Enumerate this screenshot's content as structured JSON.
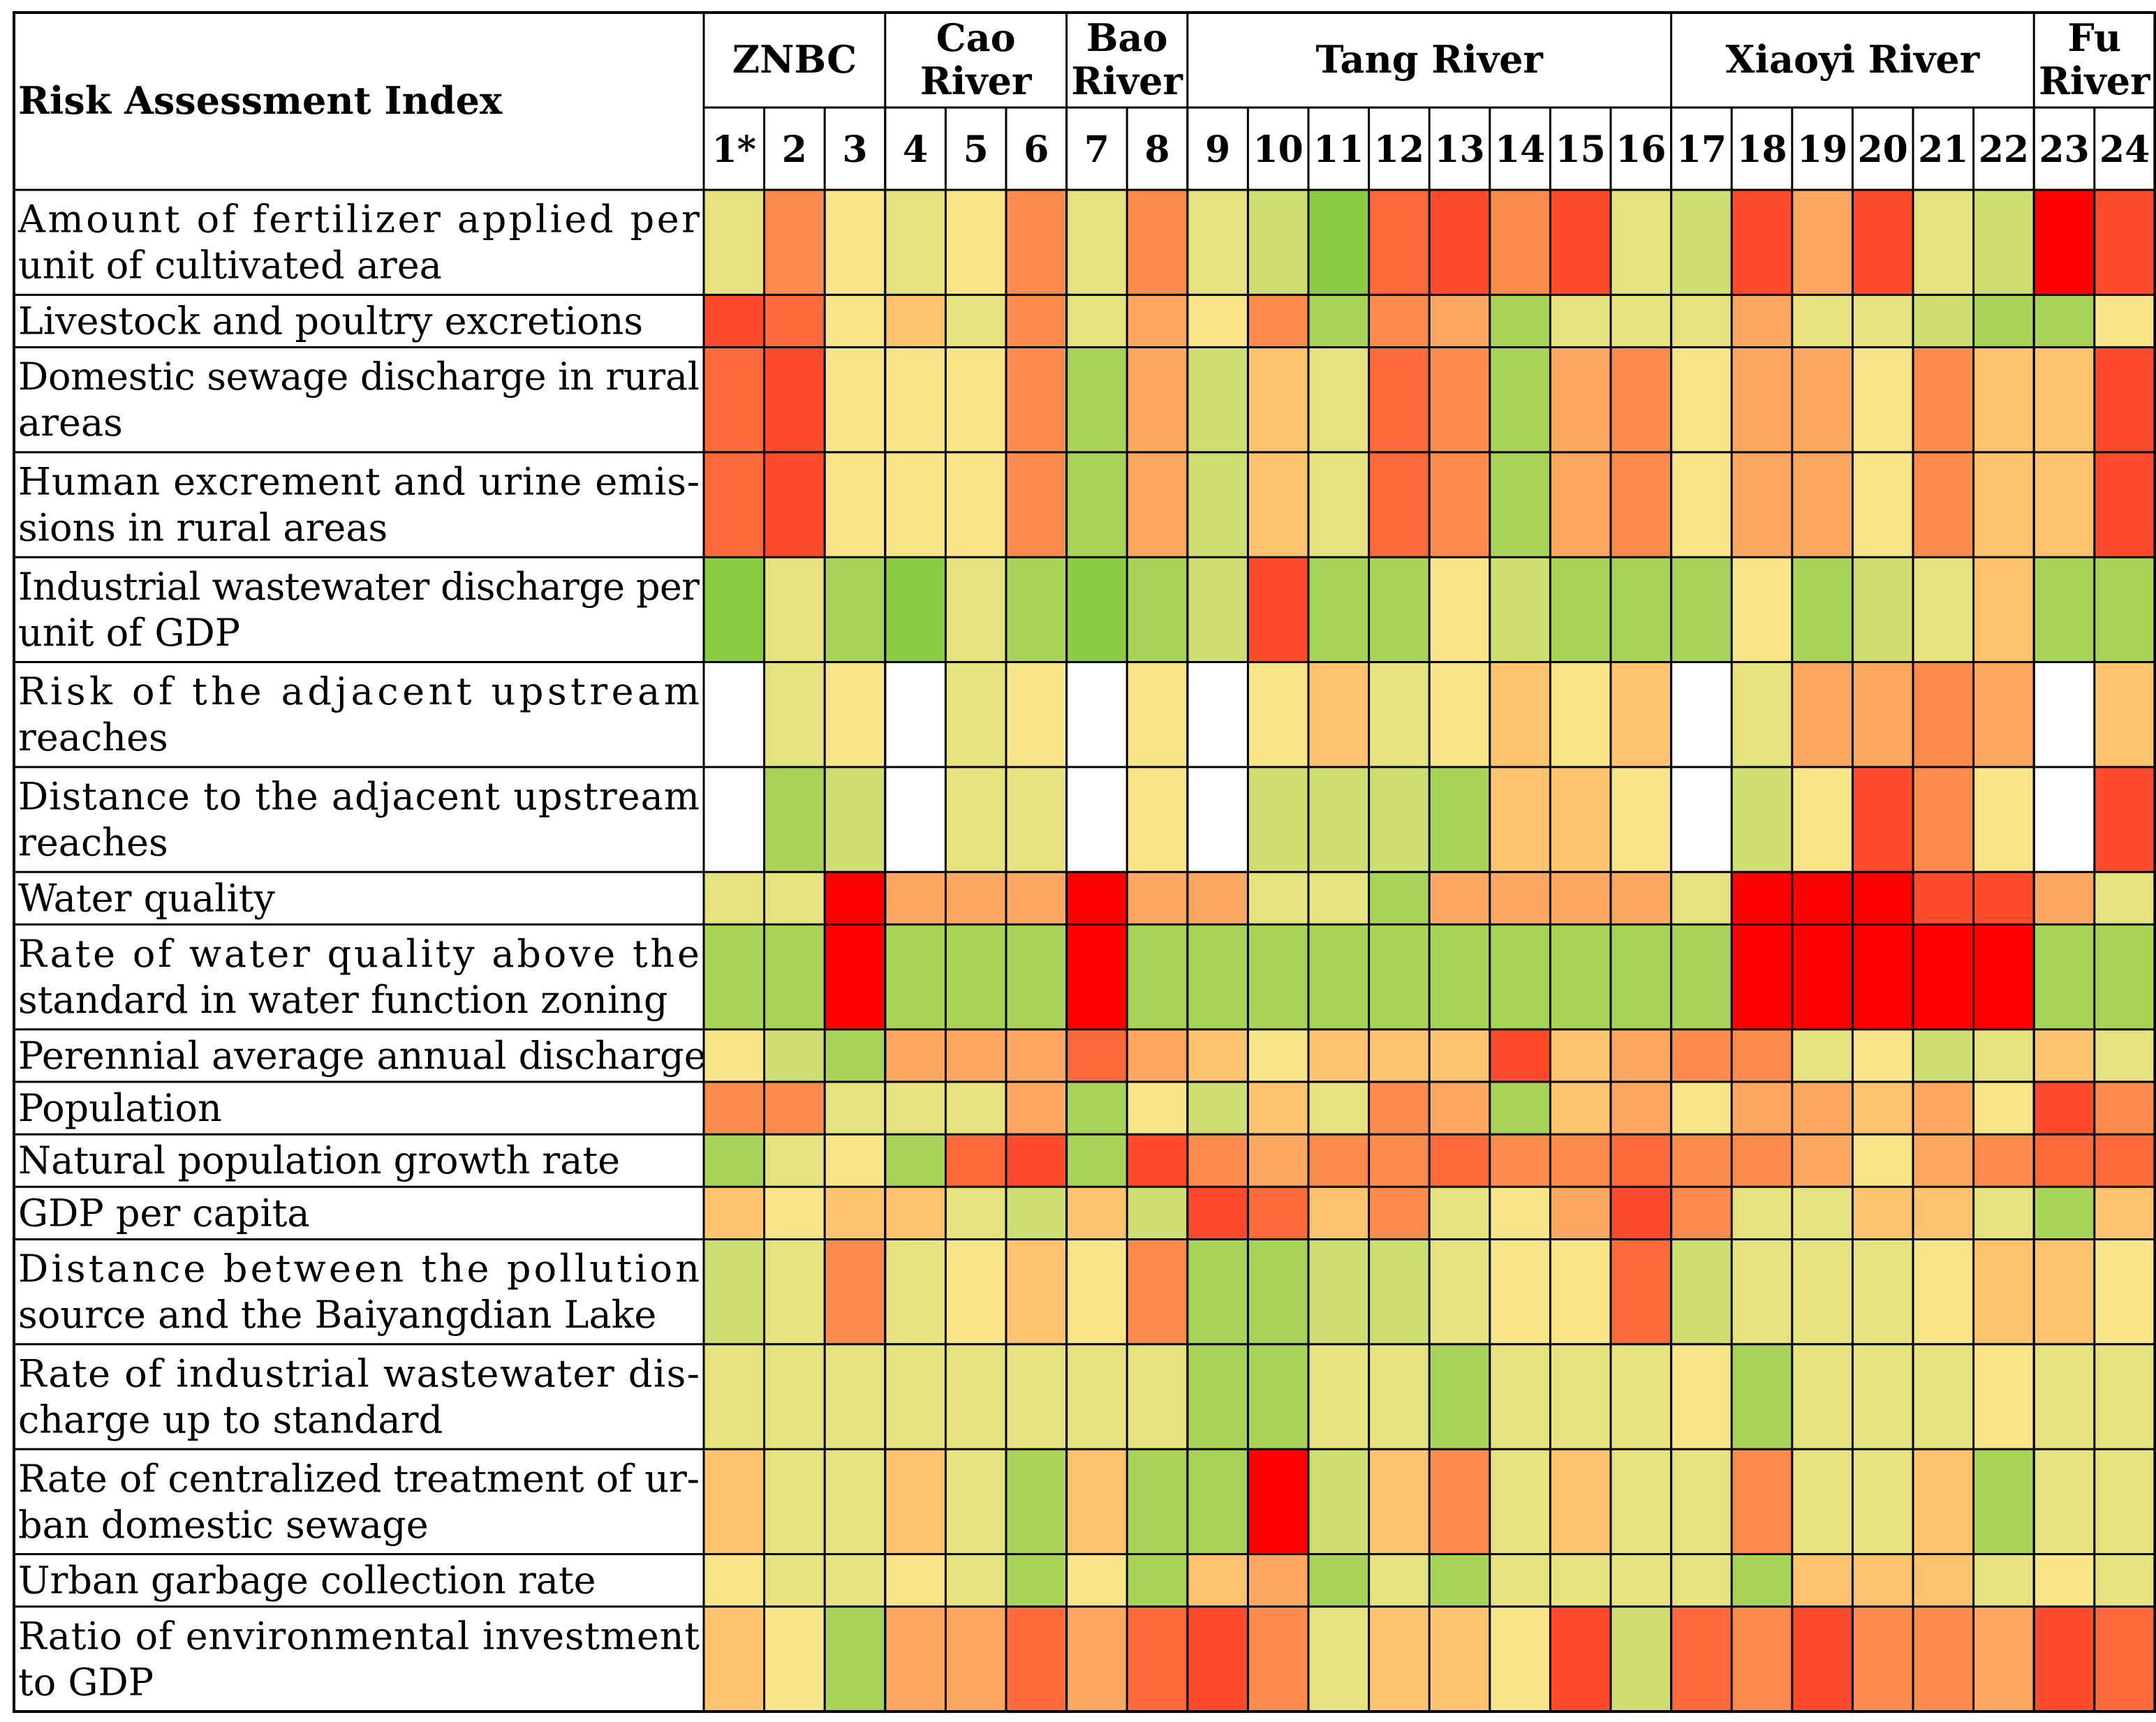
{
  "chart_data": {
    "type": "heatmap",
    "title": "",
    "row_header": "Risk Assessment Index",
    "groups": [
      {
        "name": "ZNBC",
        "lines": [
          "ZNBC"
        ],
        "columns": [
          "1*",
          "2",
          "3"
        ]
      },
      {
        "name": "Cao River",
        "lines": [
          "Cao",
          "River"
        ],
        "columns": [
          "4",
          "5",
          "6"
        ]
      },
      {
        "name": "Bao River",
        "lines": [
          "Bao",
          "River"
        ],
        "columns": [
          "7",
          "8"
        ]
      },
      {
        "name": "Tang River",
        "lines": [
          "Tang River"
        ],
        "columns": [
          "9",
          "10",
          "11",
          "12",
          "13",
          "14",
          "15",
          "16"
        ]
      },
      {
        "name": "Xiaoyi River",
        "lines": [
          "Xiaoyi River"
        ],
        "columns": [
          "17",
          "18",
          "19",
          "20",
          "21",
          "22"
        ]
      },
      {
        "name": "Fu River",
        "lines": [
          "Fu",
          "River"
        ],
        "columns": [
          "23",
          "24"
        ]
      }
    ],
    "columns": [
      "1*",
      "2",
      "3",
      "4",
      "5",
      "6",
      "7",
      "8",
      "9",
      "10",
      "11",
      "12",
      "13",
      "14",
      "15",
      "16",
      "17",
      "18",
      "19",
      "20",
      "21",
      "22",
      "23",
      "24"
    ],
    "color_scale": {
      "0": "#ffffff",
      "1": "#8ccc45",
      "2": "#a8d45a",
      "3": "#cfde72",
      "4": "#e6e280",
      "5": "#f8e589",
      "6": "#fec36f",
      "7": "#fda862",
      "8": "#fc8c4d",
      "9": "#fc6a3c",
      "10": "#fc4b2c",
      "11": "#ff0000"
    },
    "level_note": "0 = no value (white); 1 = lowest risk (green) through 11 = highest risk (red)",
    "rows": [
      {
        "label": [
          "Amount of fertilizer applied per",
          "unit of cultivated area"
        ],
        "levels": [
          4,
          8,
          5,
          4,
          5,
          8,
          4,
          8,
          4,
          3,
          1,
          9,
          10,
          8,
          10,
          4,
          3,
          10,
          7,
          10,
          4,
          3,
          11,
          10
        ]
      },
      {
        "label": [
          "Livestock and poultry excretions"
        ],
        "levels": [
          10,
          9,
          5,
          6,
          4,
          8,
          4,
          7,
          5,
          8,
          2,
          8,
          7,
          2,
          4,
          4,
          4,
          7,
          4,
          4,
          3,
          2,
          2,
          5
        ]
      },
      {
        "label": [
          "Domestic sewage discharge in rural",
          "areas"
        ],
        "levels": [
          9,
          10,
          5,
          5,
          5,
          8,
          2,
          7,
          3,
          6,
          4,
          9,
          8,
          2,
          7,
          8,
          5,
          7,
          7,
          5,
          8,
          6,
          6,
          10
        ]
      },
      {
        "label": [
          "Human excrement and urine emis-",
          "sions in rural areas"
        ],
        "levels": [
          9,
          10,
          5,
          5,
          5,
          8,
          2,
          7,
          3,
          6,
          4,
          9,
          8,
          2,
          7,
          8,
          5,
          7,
          7,
          5,
          8,
          6,
          6,
          10
        ]
      },
      {
        "label": [
          "Industrial wastewater discharge per",
          "unit of GDP"
        ],
        "levels": [
          1,
          4,
          2,
          1,
          4,
          2,
          1,
          2,
          3,
          10,
          2,
          2,
          5,
          3,
          2,
          2,
          2,
          5,
          2,
          3,
          4,
          6,
          2,
          2
        ]
      },
      {
        "label": [
          "Risk of the adjacent upstream",
          "reaches"
        ],
        "levels": [
          0,
          4,
          5,
          0,
          4,
          5,
          0,
          5,
          0,
          5,
          6,
          4,
          5,
          6,
          5,
          6,
          0,
          4,
          7,
          7,
          8,
          7,
          0,
          6
        ]
      },
      {
        "label": [
          "Distance to the adjacent upstream",
          "reaches"
        ],
        "levels": [
          0,
          2,
          3,
          0,
          4,
          4,
          0,
          5,
          0,
          3,
          3,
          3,
          2,
          6,
          6,
          5,
          0,
          3,
          5,
          10,
          8,
          5,
          0,
          10
        ]
      },
      {
        "label": [
          "Water quality"
        ],
        "levels": [
          4,
          4,
          11,
          7,
          7,
          7,
          11,
          7,
          7,
          4,
          4,
          2,
          7,
          7,
          7,
          7,
          4,
          11,
          11,
          11,
          10,
          10,
          7,
          4
        ]
      },
      {
        "label": [
          "Rate of water quality above the",
          "standard in water function zoning"
        ],
        "levels": [
          2,
          2,
          11,
          2,
          2,
          2,
          11,
          2,
          2,
          2,
          2,
          2,
          2,
          2,
          2,
          2,
          2,
          11,
          11,
          11,
          11,
          11,
          2,
          2
        ]
      },
      {
        "label": [
          "Perennial average annual discharge"
        ],
        "levels": [
          5,
          3,
          2,
          7,
          7,
          7,
          9,
          7,
          6,
          5,
          6,
          6,
          6,
          10,
          6,
          7,
          8,
          8,
          4,
          5,
          3,
          4,
          6,
          4
        ]
      },
      {
        "label": [
          "Population"
        ],
        "levels": [
          8,
          8,
          4,
          4,
          4,
          7,
          2,
          5,
          3,
          6,
          4,
          8,
          7,
          2,
          6,
          7,
          5,
          7,
          7,
          6,
          7,
          5,
          10,
          8
        ]
      },
      {
        "label": [
          "Natural population growth rate"
        ],
        "levels": [
          2,
          4,
          5,
          2,
          9,
          10,
          2,
          10,
          8,
          7,
          8,
          8,
          9,
          8,
          8,
          9,
          8,
          8,
          7,
          5,
          7,
          8,
          9,
          9
        ]
      },
      {
        "label": [
          "GDP per capita"
        ],
        "levels": [
          6,
          5,
          6,
          6,
          4,
          3,
          6,
          3,
          10,
          9,
          6,
          8,
          4,
          5,
          7,
          10,
          8,
          4,
          4,
          6,
          6,
          4,
          2,
          6
        ]
      },
      {
        "label": [
          "Distance between the pollution",
          "source and the Baiyangdian Lake"
        ],
        "levels": [
          3,
          4,
          8,
          4,
          5,
          6,
          5,
          8,
          2,
          2,
          3,
          3,
          4,
          5,
          5,
          9,
          3,
          4,
          4,
          4,
          5,
          6,
          6,
          5
        ]
      },
      {
        "label": [
          "Rate of industrial wastewater dis-",
          "charge up to standard"
        ],
        "levels": [
          4,
          4,
          4,
          4,
          4,
          4,
          4,
          4,
          2,
          2,
          4,
          4,
          2,
          4,
          4,
          4,
          5,
          2,
          4,
          4,
          4,
          5,
          4,
          4
        ]
      },
      {
        "label": [
          "Rate of centralized treatment of ur-",
          "ban domestic sewage"
        ],
        "levels": [
          6,
          4,
          4,
          6,
          4,
          2,
          6,
          2,
          2,
          11,
          3,
          6,
          8,
          4,
          6,
          4,
          4,
          8,
          4,
          4,
          6,
          2,
          4,
          4
        ]
      },
      {
        "label": [
          "Urban garbage collection rate"
        ],
        "levels": [
          5,
          4,
          4,
          5,
          4,
          2,
          5,
          2,
          6,
          7,
          2,
          4,
          2,
          4,
          4,
          4,
          4,
          2,
          6,
          6,
          6,
          4,
          5,
          4
        ]
      },
      {
        "label": [
          "Ratio of environmental investment",
          "to GDP"
        ],
        "levels": [
          6,
          5,
          2,
          7,
          7,
          9,
          7,
          9,
          10,
          8,
          4,
          6,
          6,
          5,
          10,
          3,
          9,
          8,
          10,
          8,
          8,
          7,
          10,
          9
        ]
      }
    ]
  }
}
